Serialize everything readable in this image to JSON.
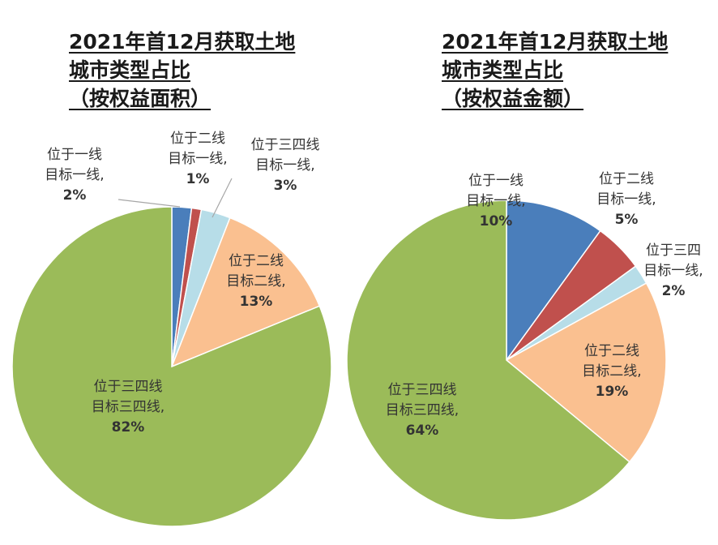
{
  "chart_data": [
    {
      "type": "pie",
      "title_lines": [
        "2021年首12月获取土地",
        "城市类型占比",
        "（按权益面积）"
      ],
      "slices": [
        {
          "line1": "位于一线",
          "line2": "目标一线,",
          "value": 2,
          "label": "2%",
          "color": "#4a7ebb"
        },
        {
          "line1": "位于二线",
          "line2": "目标一线,",
          "value": 1,
          "label": "1%",
          "color": "#c0504d"
        },
        {
          "line1": "位于三四线",
          "line2": "目标一线,",
          "value": 3,
          "label": "3%",
          "color": "#b7dde8"
        },
        {
          "line1": "位于二线",
          "line2": "目标二线,",
          "value": 13,
          "label": "13%",
          "color": "#fac090"
        },
        {
          "line1": "位于三四线",
          "line2": "目标三四线,",
          "value": 82,
          "label": "82%",
          "color": "#9bbb59"
        }
      ]
    },
    {
      "type": "pie",
      "title_lines": [
        "2021年首12月获取土地",
        "城市类型占比",
        "（按权益金额）"
      ],
      "slices": [
        {
          "line1": "位于一线",
          "line2": "目标一线,",
          "value": 10,
          "label": "10%",
          "color": "#4a7ebb"
        },
        {
          "line1": "位于二线",
          "line2": "目标一线,",
          "value": 5,
          "label": "5%",
          "color": "#c0504d"
        },
        {
          "line1": "位于三四",
          "line2": "目标一线,",
          "value": 2,
          "label": "2%",
          "color": "#b7dde8"
        },
        {
          "line1": "位于二线",
          "line2": "目标二线,",
          "value": 19,
          "label": "19%",
          "color": "#fac090"
        },
        {
          "line1": "位于三四线",
          "line2": "目标三四线,",
          "value": 64,
          "label": "64%",
          "color": "#9bbb59"
        }
      ]
    }
  ]
}
